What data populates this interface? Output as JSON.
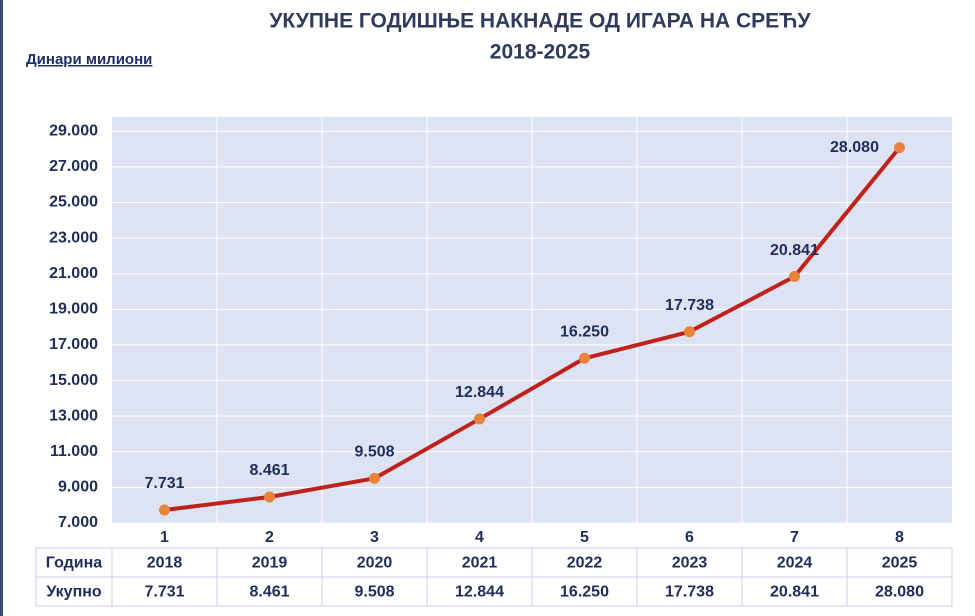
{
  "chart_data": {
    "type": "line",
    "title": "УКУПНЕ ГОДИШЊЕ НАКНАДЕ ОД ИГАРА НА СРЕЋУ",
    "subtitle": "2018-2025",
    "y_label": "Динари милиони",
    "categories": [
      "1",
      "2",
      "3",
      "4",
      "5",
      "6",
      "7",
      "8"
    ],
    "values": [
      7731,
      8461,
      9508,
      12844,
      16250,
      17738,
      20841,
      28080
    ],
    "value_labels": [
      "7.731",
      "8.461",
      "9.508",
      "12.844",
      "16.250",
      "17.738",
      "20.841",
      "28.080"
    ],
    "color": "#c0221b",
    "marker_color": "#e8833a",
    "ylim": [
      7000,
      29800
    ],
    "yticks": [
      {
        "value": 7000,
        "label": "7.000"
      },
      {
        "value": 9000,
        "label": "9.000"
      },
      {
        "value": 11000,
        "label": "11.000"
      },
      {
        "value": 13000,
        "label": "13.000"
      },
      {
        "value": 15000,
        "label": "15.000"
      },
      {
        "value": 17000,
        "label": "17.000"
      },
      {
        "value": 19000,
        "label": "19.000"
      },
      {
        "value": 21000,
        "label": "21.000"
      },
      {
        "value": 23000,
        "label": "23.000"
      },
      {
        "value": 25000,
        "label": "25.000"
      },
      {
        "value": 27000,
        "label": "27.000"
      },
      {
        "value": 29000,
        "label": "29.000"
      }
    ],
    "grid": true
  },
  "table": {
    "rows": [
      [
        "Година",
        "2018",
        "2019",
        "2020",
        "2021",
        "2022",
        "2023",
        "2024",
        "2025"
      ],
      [
        "Укупно",
        "7.731",
        "8.461",
        "9.508",
        "12.844",
        "16.250",
        "17.738",
        "20.841",
        "28.080"
      ]
    ]
  }
}
